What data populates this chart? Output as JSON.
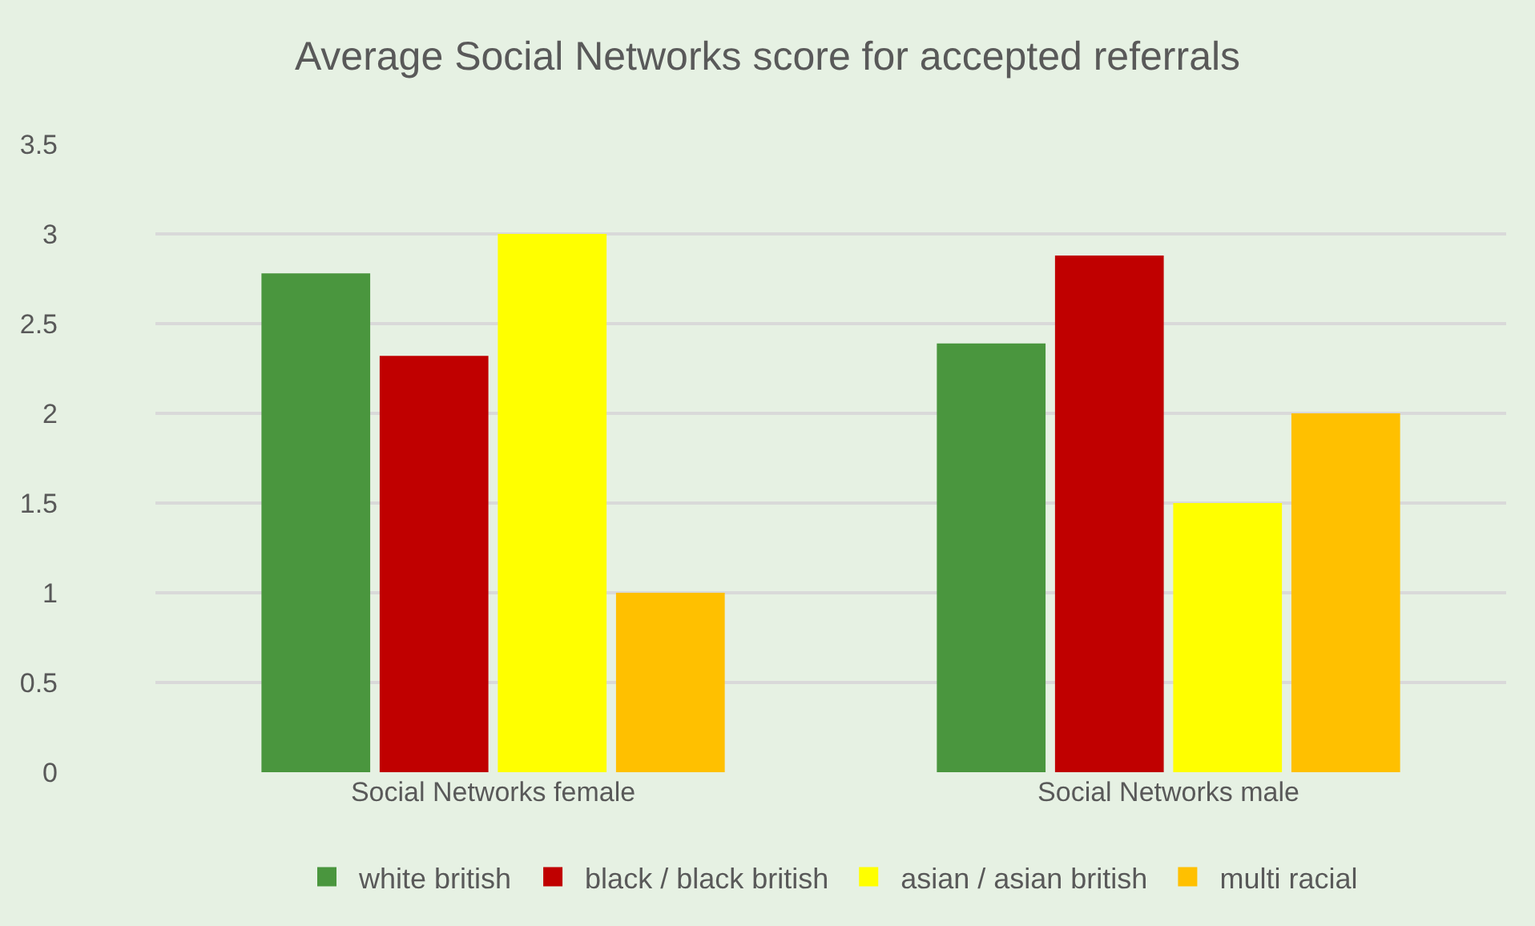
{
  "chart_data": {
    "type": "bar",
    "title": "Average Social Networks score for accepted referrals",
    "categories": [
      "Social Networks female",
      "Social Networks male"
    ],
    "series": [
      {
        "name": "white british",
        "color": "#4a963e",
        "values": [
          2.78,
          2.39
        ]
      },
      {
        "name": "black / black british",
        "color": "#c00000",
        "values": [
          2.32,
          2.88
        ]
      },
      {
        "name": "asian / asian british",
        "color": "#ffff00",
        "values": [
          3.0,
          1.5
        ]
      },
      {
        "name": "multi racial",
        "color": "#ffc000",
        "values": [
          1.0,
          2.0
        ]
      }
    ],
    "ylim": [
      0,
      3.5
    ],
    "yticks": [
      0,
      0.5,
      1,
      1.5,
      2,
      2.5,
      3,
      3.5
    ],
    "grid": "y",
    "legend": "bottom"
  }
}
